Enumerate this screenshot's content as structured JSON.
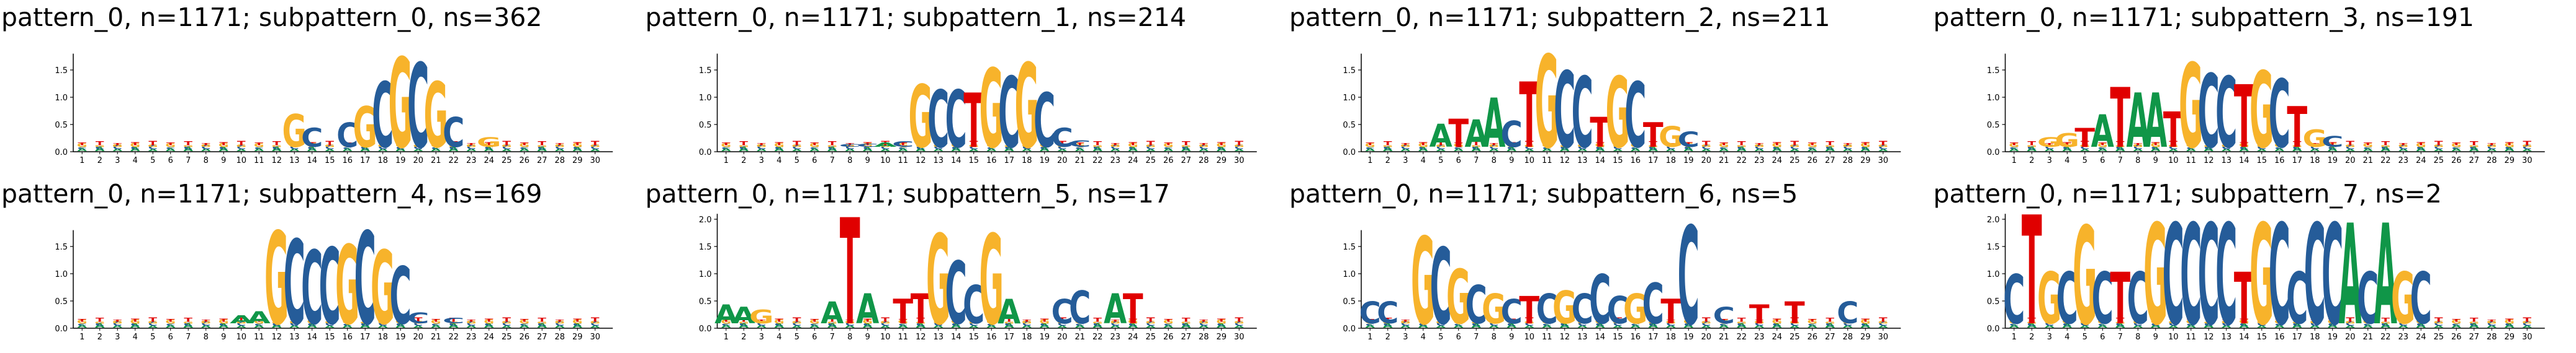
{
  "alphabet": [
    "A",
    "C",
    "G",
    "T"
  ],
  "colors": {
    "A": "#109648",
    "C": "#255c99",
    "G": "#f7b32b",
    "T": "#e00000"
  },
  "ylim_default": [
    0,
    1.8
  ],
  "ylim_high": [
    0,
    2.1
  ],
  "positions": [
    1,
    2,
    3,
    4,
    5,
    6,
    7,
    8,
    9,
    10,
    11,
    12,
    13,
    14,
    15,
    16,
    17,
    18,
    19,
    20,
    21,
    22,
    23,
    24,
    25,
    26,
    27,
    28,
    29,
    30
  ],
  "panels": [
    {
      "title": "pattern_0, n=1171; subpattern_0, ns=362",
      "yticks": [
        "0.0",
        "0.5",
        "1.0",
        "1.5"
      ],
      "ymax": 1.8,
      "logo": [
        [
          13,
          "G",
          0.6
        ],
        [
          14,
          "C",
          0.35
        ],
        [
          16,
          "C",
          0.45
        ],
        [
          17,
          "G",
          0.75
        ],
        [
          18,
          "C",
          1.2
        ],
        [
          19,
          "G",
          1.65
        ],
        [
          20,
          "C",
          1.55
        ],
        [
          21,
          "G",
          1.2
        ],
        [
          22,
          "C",
          0.55
        ],
        [
          24,
          "G",
          0.18
        ]
      ]
    },
    {
      "title": "pattern_0, n=1171; subpattern_1, ns=214",
      "yticks": [
        "0.0",
        "0.5",
        "1.0",
        "1.5"
      ],
      "ymax": 1.8,
      "logo": [
        [
          8,
          "C",
          0.05
        ],
        [
          9,
          "C",
          0.06
        ],
        [
          10,
          "A",
          0.08
        ],
        [
          11,
          "C",
          0.1
        ],
        [
          12,
          "G",
          1.15
        ],
        [
          13,
          "C",
          1.05
        ],
        [
          14,
          "C",
          1.05
        ],
        [
          15,
          "T",
          1.0
        ],
        [
          16,
          "G",
          1.45
        ],
        [
          17,
          "C",
          1.3
        ],
        [
          18,
          "G",
          1.55
        ],
        [
          19,
          "C",
          1.0
        ],
        [
          20,
          "C",
          0.35
        ],
        [
          21,
          "C",
          0.12
        ]
      ]
    },
    {
      "title": "pattern_0, n=1171; subpattern_2, ns=211",
      "yticks": [
        "0.0",
        "0.5",
        "1.0",
        "1.5"
      ],
      "ymax": 1.8,
      "logo": [
        [
          5,
          "A",
          0.42
        ],
        [
          6,
          "T",
          0.52
        ],
        [
          7,
          "A",
          0.5
        ],
        [
          8,
          "A",
          0.9
        ],
        [
          9,
          "C",
          0.48
        ],
        [
          10,
          "T",
          1.2
        ],
        [
          11,
          "G",
          1.7
        ],
        [
          12,
          "C",
          1.4
        ],
        [
          13,
          "C",
          1.3
        ],
        [
          14,
          "T",
          0.55
        ],
        [
          15,
          "G",
          1.3
        ],
        [
          16,
          "C",
          1.2
        ],
        [
          17,
          "T",
          0.45
        ],
        [
          18,
          "G",
          0.38
        ],
        [
          19,
          "C",
          0.28
        ]
      ]
    },
    {
      "title": "pattern_0, n=1171; subpattern_3, ns=191",
      "yticks": [
        "0.0",
        "0.5",
        "1.0",
        "1.5"
      ],
      "ymax": 1.8,
      "logo": [
        [
          3,
          "G",
          0.18
        ],
        [
          4,
          "G",
          0.25
        ],
        [
          5,
          "T",
          0.35
        ],
        [
          6,
          "A",
          0.6
        ],
        [
          7,
          "T",
          1.1
        ],
        [
          8,
          "A",
          1.0
        ],
        [
          9,
          "A",
          1.0
        ],
        [
          10,
          "T",
          0.65
        ],
        [
          11,
          "G",
          1.55
        ],
        [
          12,
          "C",
          1.35
        ],
        [
          13,
          "C",
          1.3
        ],
        [
          14,
          "T",
          1.15
        ],
        [
          15,
          "G",
          1.4
        ],
        [
          16,
          "C",
          1.25
        ],
        [
          17,
          "T",
          0.75
        ],
        [
          18,
          "G",
          0.32
        ],
        [
          19,
          "C",
          0.2
        ]
      ]
    },
    {
      "title": "pattern_0, n=1171; subpattern_4, ns=169",
      "yticks": [
        "0.0",
        "0.5",
        "1.0",
        "1.5"
      ],
      "ymax": 1.8,
      "logo": [
        [
          10,
          "A",
          0.15
        ],
        [
          11,
          "A",
          0.22
        ],
        [
          12,
          "G",
          1.7
        ],
        [
          13,
          "C",
          1.55
        ],
        [
          14,
          "C",
          1.35
        ],
        [
          15,
          "C",
          1.4
        ],
        [
          16,
          "G",
          1.45
        ],
        [
          17,
          "C",
          1.7
        ],
        [
          18,
          "G",
          1.35
        ],
        [
          19,
          "C",
          1.05
        ],
        [
          20,
          "C",
          0.2
        ],
        [
          22,
          "C",
          0.1
        ]
      ]
    },
    {
      "title": "pattern_0, n=1171; subpattern_5, ns=17",
      "yticks": [
        "0.0",
        "0.5",
        "1.0",
        "1.5",
        "2.0"
      ],
      "ymax": 2.1,
      "logo": [
        [
          1,
          "A",
          0.35
        ],
        [
          2,
          "A",
          0.3
        ],
        [
          3,
          "G",
          0.25
        ],
        [
          7,
          "A",
          0.4
        ],
        [
          8,
          "T",
          1.95
        ],
        [
          9,
          "A",
          0.55
        ],
        [
          11,
          "T",
          0.45
        ],
        [
          12,
          "T",
          0.55
        ],
        [
          13,
          "G",
          1.65
        ],
        [
          14,
          "C",
          1.15
        ],
        [
          15,
          "C",
          0.7
        ],
        [
          16,
          "G",
          1.65
        ],
        [
          17,
          "A",
          0.45
        ],
        [
          20,
          "C",
          0.45
        ],
        [
          21,
          "C",
          0.6
        ],
        [
          23,
          "A",
          0.55
        ],
        [
          24,
          "T",
          0.55
        ]
      ]
    },
    {
      "title": "pattern_0, n=1171; subpattern_6, ns=5",
      "yticks": [
        "0.0",
        "0.5",
        "1.0",
        "1.5"
      ],
      "ymax": 1.8,
      "logo": [
        [
          1,
          "C",
          0.4
        ],
        [
          2,
          "C",
          0.4
        ],
        [
          4,
          "G",
          1.6
        ],
        [
          5,
          "C",
          1.4
        ],
        [
          6,
          "G",
          1.0
        ],
        [
          7,
          "C",
          0.7
        ],
        [
          8,
          "G",
          0.55
        ],
        [
          9,
          "C",
          0.45
        ],
        [
          10,
          "T",
          0.5
        ],
        [
          11,
          "C",
          0.55
        ],
        [
          12,
          "G",
          0.6
        ],
        [
          13,
          "C",
          0.55
        ],
        [
          14,
          "C",
          0.9
        ],
        [
          15,
          "C",
          0.5
        ],
        [
          16,
          "G",
          0.55
        ],
        [
          17,
          "C",
          0.75
        ],
        [
          18,
          "T",
          0.45
        ],
        [
          19,
          "C",
          1.8
        ],
        [
          21,
          "C",
          0.3
        ],
        [
          23,
          "T",
          0.35
        ],
        [
          25,
          "T",
          0.4
        ],
        [
          28,
          "C",
          0.4
        ]
      ]
    },
    {
      "title": "pattern_0, n=1171; subpattern_7, ns=2",
      "yticks": [
        "0.0",
        "0.5",
        "1.0",
        "1.5",
        "2.0"
      ],
      "ymax": 2.1,
      "logo": [
        [
          1,
          "C",
          0.9
        ],
        [
          2,
          "T",
          2.0
        ],
        [
          3,
          "G",
          0.95
        ],
        [
          4,
          "C",
          0.95
        ],
        [
          5,
          "G",
          1.8
        ],
        [
          6,
          "C",
          0.95
        ],
        [
          7,
          "T",
          0.95
        ],
        [
          8,
          "C",
          0.95
        ],
        [
          9,
          "G",
          1.85
        ],
        [
          10,
          "C",
          1.85
        ],
        [
          11,
          "C",
          1.85
        ],
        [
          12,
          "C",
          1.85
        ],
        [
          13,
          "C",
          1.85
        ],
        [
          14,
          "T",
          0.95
        ],
        [
          15,
          "G",
          1.85
        ],
        [
          16,
          "C",
          1.85
        ],
        [
          17,
          "C",
          0.95
        ],
        [
          18,
          "C",
          1.85
        ],
        [
          19,
          "C",
          1.85
        ],
        [
          20,
          "A",
          1.85
        ],
        [
          21,
          "C",
          0.95
        ],
        [
          22,
          "A",
          1.85
        ],
        [
          23,
          "G",
          0.95
        ],
        [
          24,
          "C",
          0.95
        ]
      ]
    }
  ]
}
